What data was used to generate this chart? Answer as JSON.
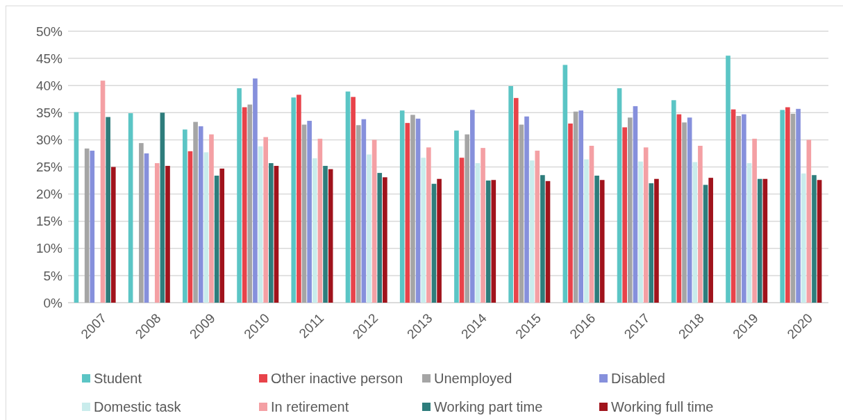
{
  "chart_data": {
    "type": "bar",
    "categories": [
      "2007",
      "2008",
      "2009",
      "2010",
      "2011",
      "2012",
      "2013",
      "2014",
      "2015",
      "2016",
      "2017",
      "2018",
      "2019",
      "2020"
    ],
    "series": [
      {
        "name": "Student",
        "color": "#5bc5c5",
        "values": [
          35.1,
          34.9,
          31.9,
          39.5,
          37.8,
          38.9,
          35.4,
          31.7,
          39.9,
          43.8,
          39.5,
          37.3,
          45.5,
          35.5
        ]
      },
      {
        "name": "Other inactive person",
        "color": "#e8434a",
        "values": [
          null,
          null,
          27.9,
          36.0,
          38.3,
          37.9,
          33.1,
          26.7,
          37.7,
          33.0,
          32.3,
          34.7,
          35.6,
          36.0
        ]
      },
      {
        "name": "Unemployed",
        "color": "#a5a5a5",
        "values": [
          28.4,
          29.4,
          33.3,
          36.5,
          32.8,
          32.7,
          34.6,
          31.0,
          32.8,
          35.2,
          34.1,
          33.2,
          34.4,
          34.8
        ]
      },
      {
        "name": "Disabled",
        "color": "#8690dc",
        "values": [
          28.0,
          27.5,
          32.5,
          41.3,
          33.5,
          33.8,
          33.9,
          35.5,
          34.3,
          35.4,
          36.2,
          34.1,
          34.7,
          35.7
        ]
      },
      {
        "name": "Domestic task",
        "color": "#c9ecec",
        "values": [
          null,
          null,
          27.7,
          28.8,
          26.6,
          27.3,
          26.7,
          25.7,
          26.2,
          26.4,
          26.0,
          25.9,
          25.7,
          23.8
        ]
      },
      {
        "name": "In retirement",
        "color": "#f4a0a4",
        "values": [
          40.9,
          25.7,
          31.0,
          30.5,
          30.2,
          30.0,
          28.6,
          28.5,
          28.0,
          28.9,
          28.6,
          28.9,
          30.2,
          30.0
        ]
      },
      {
        "name": "Working part time",
        "color": "#2e7d7c",
        "values": [
          34.2,
          35.0,
          23.4,
          25.7,
          25.2,
          23.9,
          21.9,
          22.5,
          23.5,
          23.4,
          22.0,
          21.7,
          22.8,
          23.5
        ]
      },
      {
        "name": "Working full time",
        "color": "#a0131c",
        "values": [
          25.0,
          25.2,
          24.7,
          25.2,
          24.6,
          23.1,
          22.8,
          22.6,
          22.4,
          22.6,
          22.8,
          23.0,
          22.8,
          22.6
        ]
      }
    ],
    "ylim": [
      0,
      50
    ],
    "yticks": [
      {
        "value": 0,
        "label": "0%"
      },
      {
        "value": 5,
        "label": "5%"
      },
      {
        "value": 10,
        "label": "10%"
      },
      {
        "value": 15,
        "label": "15%"
      },
      {
        "value": 20,
        "label": "20%"
      },
      {
        "value": 25,
        "label": "25%"
      },
      {
        "value": 30,
        "label": "30%"
      },
      {
        "value": 35,
        "label": "35%"
      },
      {
        "value": 40,
        "label": "40%"
      },
      {
        "value": 45,
        "label": "45%"
      },
      {
        "value": 50,
        "label": "50%"
      }
    ],
    "grid": "y",
    "legend": "bottom"
  }
}
